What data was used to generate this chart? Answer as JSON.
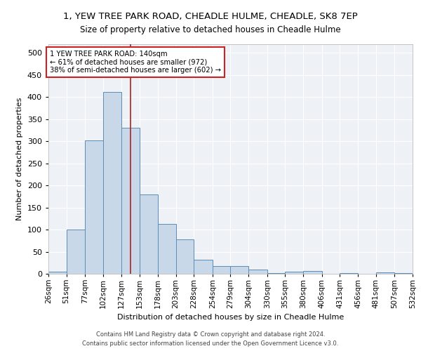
{
  "title_line1": "1, YEW TREE PARK ROAD, CHEADLE HULME, CHEADLE, SK8 7EP",
  "title_line2": "Size of property relative to detached houses in Cheadle Hulme",
  "xlabel": "Distribution of detached houses by size in Cheadle Hulme",
  "ylabel": "Number of detached properties",
  "footer_line1": "Contains HM Land Registry data © Crown copyright and database right 2024.",
  "footer_line2": "Contains public sector information licensed under the Open Government Licence v3.0.",
  "bins": [
    26,
    51,
    77,
    102,
    127,
    153,
    178,
    203,
    228,
    254,
    279,
    304,
    330,
    355,
    380,
    406,
    431,
    456,
    481,
    507,
    532
  ],
  "bar_values": [
    4,
    100,
    302,
    412,
    330,
    180,
    113,
    78,
    32,
    18,
    18,
    9,
    2,
    4,
    6,
    0,
    2,
    0,
    3,
    2
  ],
  "bar_color": "#c8d8e8",
  "bar_edge_color": "#5b8db8",
  "property_size": 140,
  "vline_color": "#aa2222",
  "annotation_text": "1 YEW TREE PARK ROAD: 140sqm\n← 61% of detached houses are smaller (972)\n38% of semi-detached houses are larger (602) →",
  "annotation_box_color": "#ffffff",
  "annotation_box_edge": "#cc2222",
  "ylim": [
    0,
    520
  ],
  "yticks": [
    0,
    50,
    100,
    150,
    200,
    250,
    300,
    350,
    400,
    450,
    500
  ],
  "axes_bg_color": "#eef2f7",
  "grid_color": "#ffffff",
  "title1_fontsize": 9.5,
  "title2_fontsize": 8.5,
  "tick_label_fontsize": 7.5,
  "ylabel_fontsize": 8,
  "xlabel_fontsize": 8
}
